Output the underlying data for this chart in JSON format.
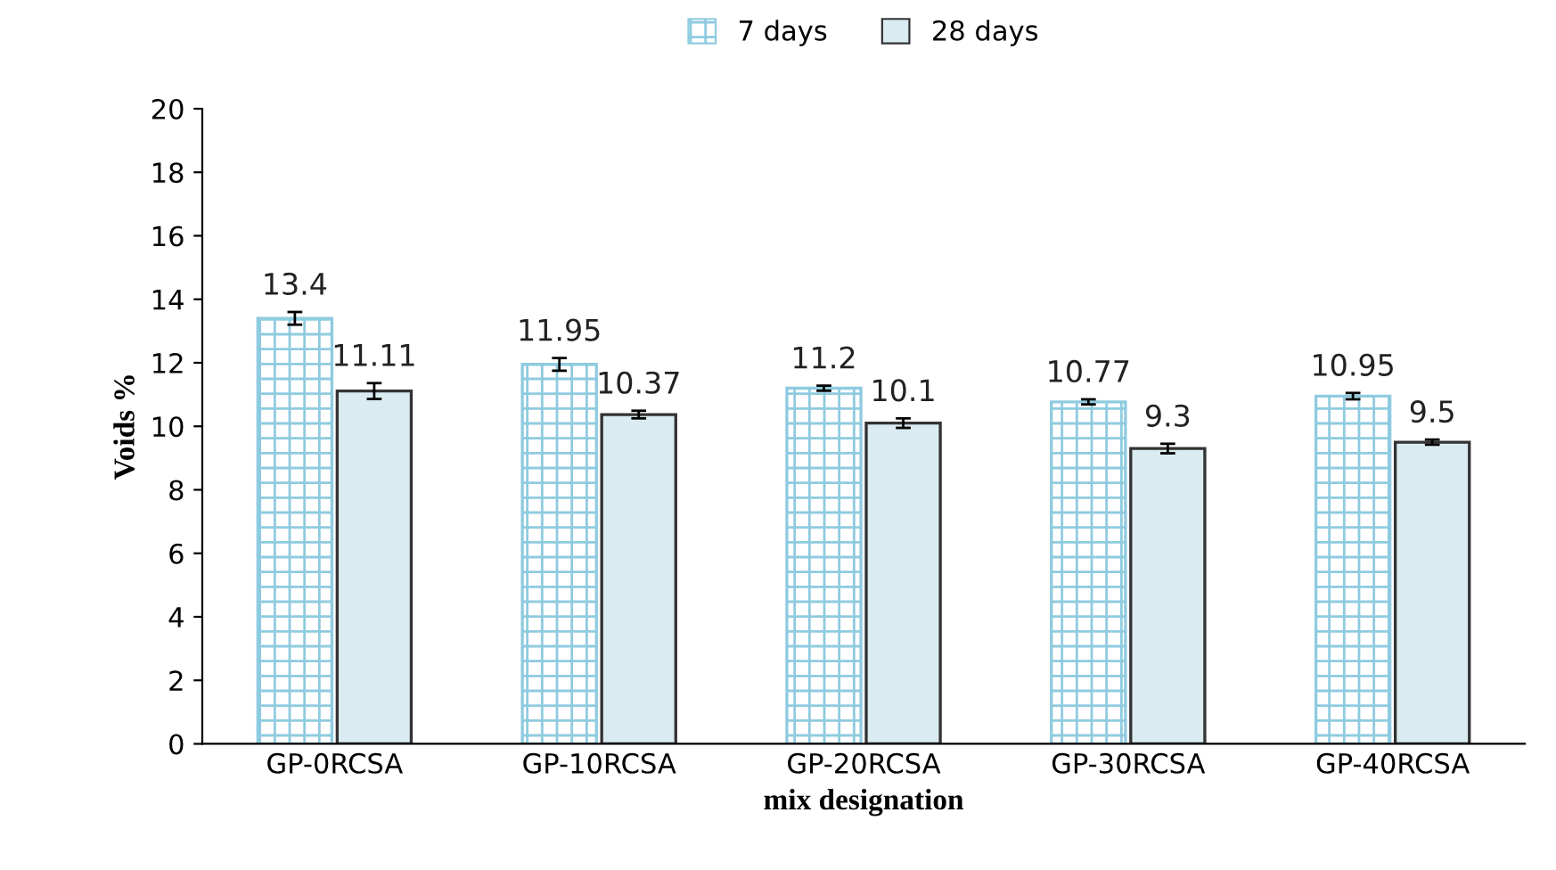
{
  "chart_data": {
    "type": "bar",
    "xlabel": "mix designation",
    "ylabel": "Voids %",
    "categories": [
      "GP-0RCSA",
      "GP-10RCSA",
      "GP-20RCSA",
      "GP-30RCSA",
      "GP-40RCSA"
    ],
    "series": [
      {
        "name": "7 days",
        "color": "#8fcbe0",
        "values": [
          13.4,
          11.95,
          11.2,
          10.77,
          10.95
        ],
        "errors": [
          0.2,
          0.2,
          0.08,
          0.08,
          0.1
        ],
        "value_labels": [
          "13.4",
          "11.95",
          "11.2",
          "10.77",
          "10.95"
        ]
      },
      {
        "name": "28 days",
        "color": "#daebf2",
        "values": [
          11.11,
          10.37,
          10.1,
          9.3,
          9.5
        ],
        "errors": [
          0.25,
          0.12,
          0.15,
          0.15,
          0.08
        ],
        "value_labels": [
          "11.11",
          "10.37",
          "10.1",
          "9.3",
          "9.5"
        ]
      }
    ],
    "ylim": [
      0,
      20
    ],
    "yticks": [
      0,
      2,
      4,
      6,
      8,
      10,
      12,
      14,
      16,
      18,
      20
    ],
    "grid": false,
    "legend": "top"
  }
}
